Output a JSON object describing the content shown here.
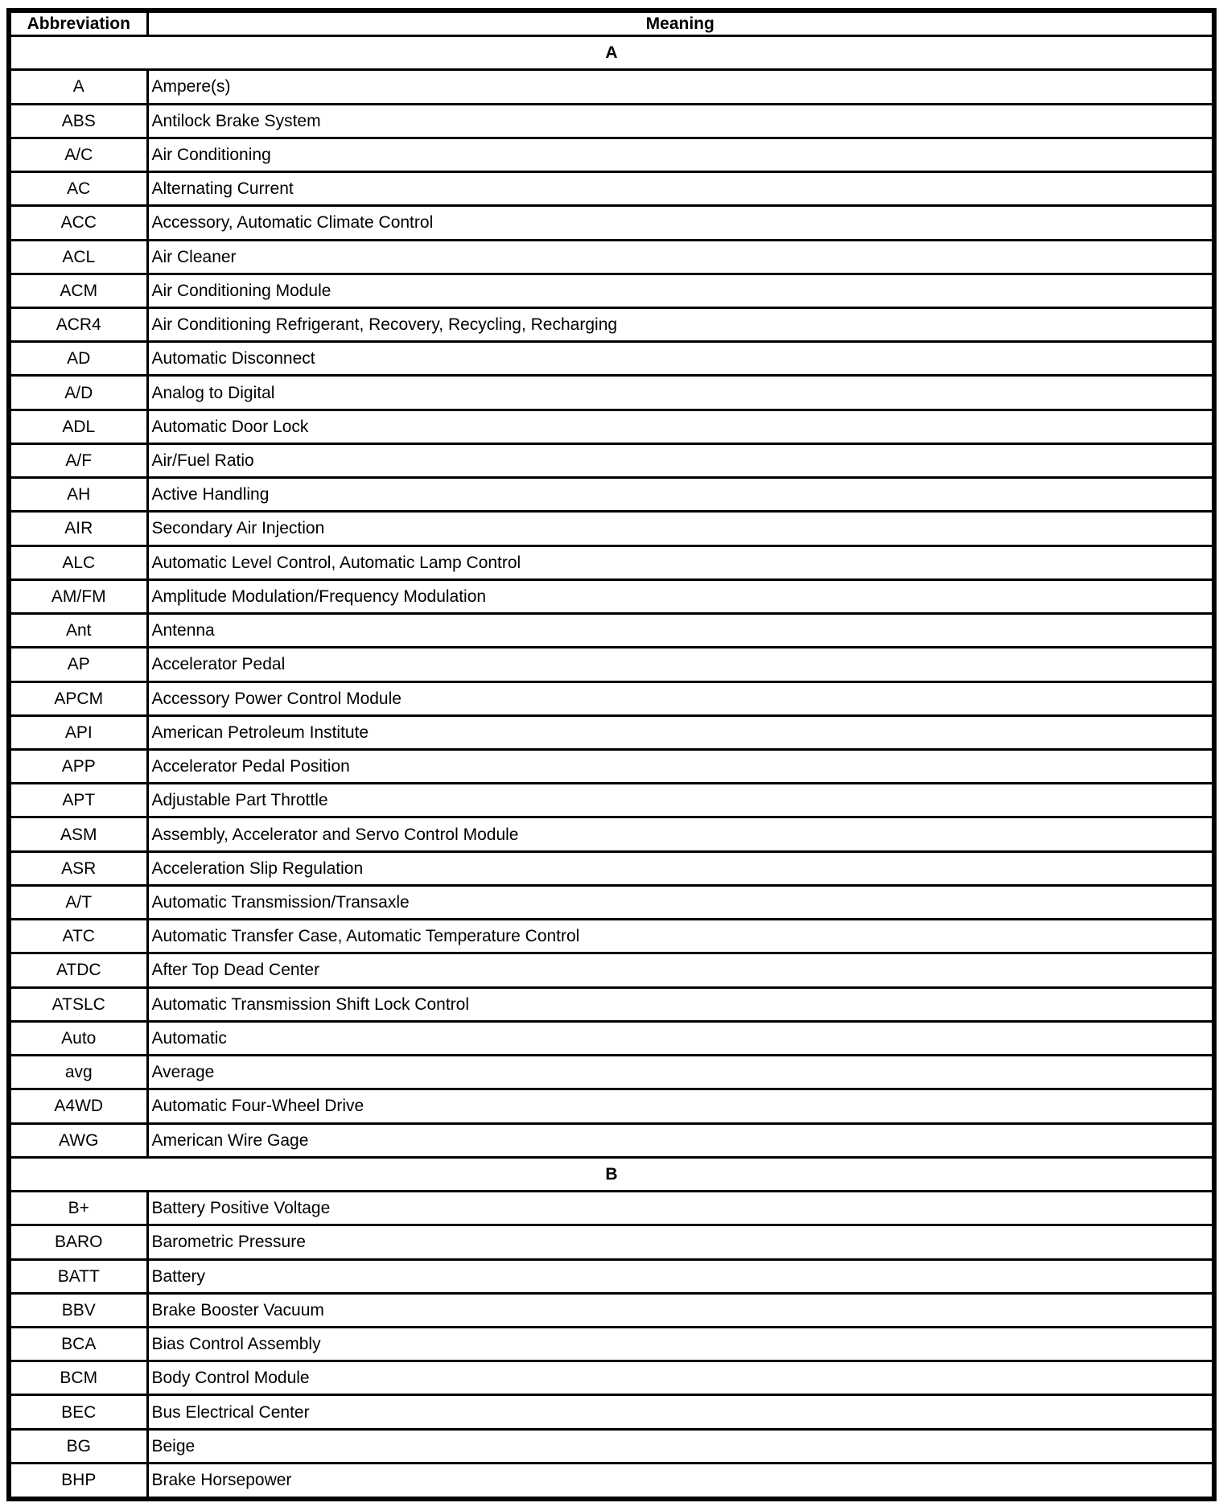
{
  "page": {
    "background_color": "#ffffff",
    "border_color": "#000000",
    "text_color": "#000000"
  },
  "table": {
    "columns": [
      "Abbreviation",
      "Meaning"
    ],
    "sections": [
      {
        "letter": "A",
        "rows": [
          [
            "A",
            "Ampere(s)"
          ],
          [
            "ABS",
            "Antilock Brake System"
          ],
          [
            "A/C",
            "Air Conditioning"
          ],
          [
            "AC",
            "Alternating Current"
          ],
          [
            "ACC",
            "Accessory, Automatic Climate Control"
          ],
          [
            "ACL",
            "Air Cleaner"
          ],
          [
            "ACM",
            "Air Conditioning Module"
          ],
          [
            "ACR4",
            "Air Conditioning Refrigerant, Recovery, Recycling, Recharging"
          ],
          [
            "AD",
            "Automatic Disconnect"
          ],
          [
            "A/D",
            "Analog to Digital"
          ],
          [
            "ADL",
            "Automatic Door Lock"
          ],
          [
            "A/F",
            "Air/Fuel Ratio"
          ],
          [
            "AH",
            "Active Handling"
          ],
          [
            "AIR",
            "Secondary Air Injection"
          ],
          [
            "ALC",
            "Automatic Level Control, Automatic Lamp Control"
          ],
          [
            "AM/FM",
            "Amplitude Modulation/Frequency Modulation"
          ],
          [
            "Ant",
            "Antenna"
          ],
          [
            "AP",
            "Accelerator Pedal"
          ],
          [
            "APCM",
            "Accessory Power Control Module"
          ],
          [
            "API",
            "American Petroleum Institute"
          ],
          [
            "APP",
            "Accelerator Pedal Position"
          ],
          [
            "APT",
            "Adjustable Part Throttle"
          ],
          [
            "ASM",
            "Assembly, Accelerator and Servo Control Module"
          ],
          [
            "ASR",
            "Acceleration Slip Regulation"
          ],
          [
            "A/T",
            "Automatic Transmission/Transaxle"
          ],
          [
            "ATC",
            "Automatic Transfer Case, Automatic Temperature Control"
          ],
          [
            "ATDC",
            "After Top Dead Center"
          ],
          [
            "ATSLC",
            "Automatic Transmission Shift Lock Control"
          ],
          [
            "Auto",
            "Automatic"
          ],
          [
            "avg",
            "Average"
          ],
          [
            "A4WD",
            "Automatic Four-Wheel Drive"
          ],
          [
            "AWG",
            "American Wire Gage"
          ]
        ]
      },
      {
        "letter": "B",
        "rows": [
          [
            "B+",
            "Battery Positive Voltage"
          ],
          [
            "BARO",
            "Barometric Pressure"
          ],
          [
            "BATT",
            "Battery"
          ],
          [
            "BBV",
            "Brake Booster Vacuum"
          ],
          [
            "BCA",
            "Bias Control Assembly"
          ],
          [
            "BCM",
            "Body Control Module"
          ],
          [
            "BEC",
            "Bus Electrical Center"
          ],
          [
            "BG",
            "Beige"
          ],
          [
            "BHP",
            "Brake Horsepower"
          ]
        ]
      }
    ]
  }
}
